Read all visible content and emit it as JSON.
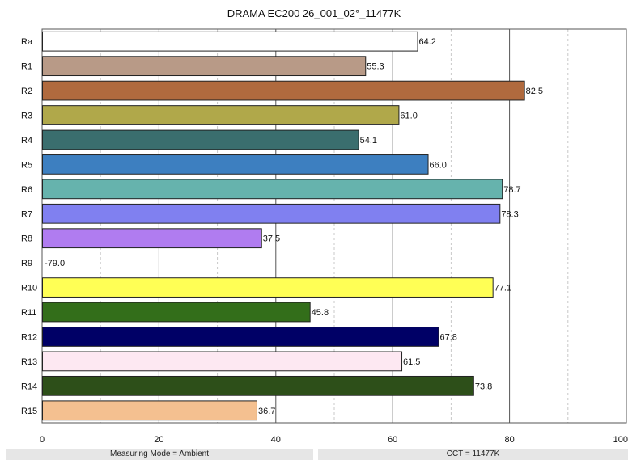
{
  "chart_data": {
    "type": "bar",
    "orientation": "horizontal",
    "title": "DRAMA EC200 26_001_02°_11477K",
    "categories": [
      "Ra",
      "R1",
      "R2",
      "R3",
      "R4",
      "R5",
      "R6",
      "R7",
      "R8",
      "R9",
      "R10",
      "R11",
      "R12",
      "R13",
      "R14",
      "R15"
    ],
    "values": [
      64.2,
      55.3,
      82.5,
      61.0,
      54.1,
      66.0,
      78.7,
      78.3,
      37.5,
      -79.0,
      77.1,
      45.8,
      67.8,
      61.5,
      73.8,
      36.7
    ],
    "value_labels": [
      "64.2",
      "55.3",
      "82.5",
      "61.0",
      "54.1",
      "66.0",
      "78.7",
      "78.3",
      "37.5",
      "-79.0",
      "77.1",
      "45.8",
      "67.8",
      "61.5",
      "73.8",
      "36.7"
    ],
    "colors": [
      "#ffffff",
      "#b89a87",
      "#b06a3e",
      "#b0a84a",
      "#3a6e6e",
      "#3d7fc0",
      "#66b3ad",
      "#8080f0",
      "#b07cf0",
      "#ffffff",
      "#ffff55",
      "#336e1a",
      "#000066",
      "#fde8f2",
      "#2d4f19",
      "#f4c090"
    ],
    "xlim": [
      0,
      100
    ],
    "xticks": [
      "0",
      "20",
      "40",
      "60",
      "80",
      "100"
    ],
    "grid": true,
    "footer": {
      "left": "Measuring Mode = Ambient",
      "right": "CCT = 11477K"
    }
  }
}
